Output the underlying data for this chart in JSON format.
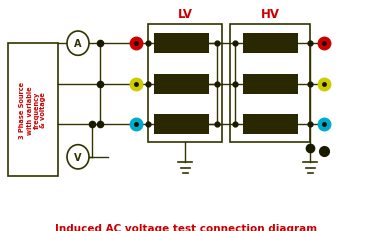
{
  "title": "Induced AC voltage test connection diagram",
  "title_color": "#cc0000",
  "title_fontsize": 7.5,
  "bg_color": "#ffffff",
  "lv_label": "LV",
  "hv_label": "HV",
  "label_color": "#cc0000",
  "source_text": "3 Phase Source\nwith variable\nfrequency\n& voltage",
  "source_text_color": "#cc0000",
  "wire_color": "#333300",
  "coil_color": "#2a2800",
  "dot_color": "#1a1a00",
  "phase_colors": [
    "#cc0000",
    "#cccc00",
    "#00aacc"
  ],
  "ground_color": "#333300",
  "line_width": 1.0
}
